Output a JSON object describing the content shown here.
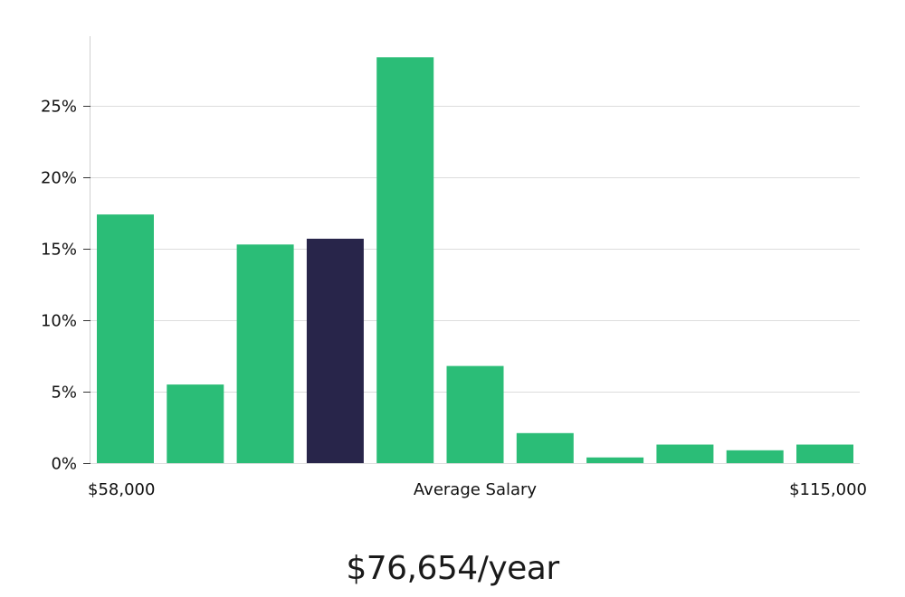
{
  "chart_data": {
    "type": "bar",
    "title": "",
    "xlabel": "Average Salary",
    "ylabel": "",
    "x_range_labels": {
      "min": "$58,000",
      "max": "$115,000"
    },
    "ylim": [
      0,
      30
    ],
    "yticks": [
      0,
      5,
      10,
      15,
      20,
      25
    ],
    "ytick_labels": [
      "0%",
      "5%",
      "10%",
      "15%",
      "20%",
      "25%"
    ],
    "grid": true,
    "values": [
      17.4,
      5.5,
      15.3,
      15.7,
      28.4,
      6.8,
      2.1,
      0.4,
      1.3,
      0.9,
      1.3
    ],
    "highlight_index": 3,
    "colors": {
      "bar": "#2bbd77",
      "highlight": "#28254a",
      "grid": "#dddddd",
      "axis": "#d0d0d0"
    }
  },
  "salary": {
    "value": "$76,654/year"
  }
}
